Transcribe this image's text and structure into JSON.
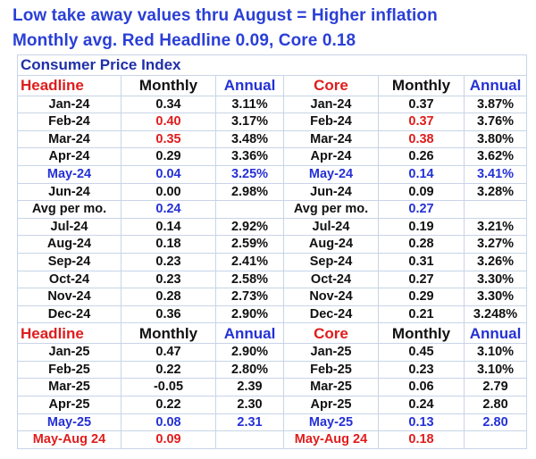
{
  "titles": {
    "line1": "Low take away values thru August = Higher inflation",
    "line2": "Monthly avg. Red Headline 0.09, Core 0.18"
  },
  "table": {
    "caption": "Consumer Price Index",
    "header_2024": {
      "headline": "Headline",
      "monthly": "Monthly",
      "annual": "Annual",
      "core": "Core",
      "core_monthly": "Monthly",
      "core_annual": "Annual"
    },
    "rows_h1_2024": [
      {
        "month": "Jan-24",
        "h_m": "0.34",
        "h_a": "3.11%",
        "core_month": "Jan-24",
        "c_m": "0.37",
        "c_a": "3.87%"
      },
      {
        "month": "Feb-24",
        "h_m": "0.40",
        "h_a": "3.17%",
        "core_month": "Feb-24",
        "c_m": "0.37",
        "c_a": "3.76%"
      },
      {
        "month": "Mar-24",
        "h_m": "0.35",
        "h_a": "3.48%",
        "core_month": "Mar-24",
        "c_m": "0.38",
        "c_a": "3.80%"
      },
      {
        "month": "Apr-24",
        "h_m": "0.29",
        "h_a": "3.36%",
        "core_month": "Apr-24",
        "c_m": "0.26",
        "c_a": "3.62%"
      },
      {
        "month": "May-24",
        "h_m": "0.04",
        "h_a": "3.25%",
        "core_month": "May-24",
        "c_m": "0.14",
        "c_a": "3.41%"
      },
      {
        "month": "Jun-24",
        "h_m": "0.00",
        "h_a": "2.98%",
        "core_month": "Jun-24",
        "c_m": "0.09",
        "c_a": "3.28%"
      }
    ],
    "avg_row": {
      "label": "Avg per mo.",
      "h_value": "0.24",
      "core_label": "Avg per mo.",
      "c_value": "0.27"
    },
    "rows_h2_2024": [
      {
        "month": "Jul-24",
        "h_m": "0.14",
        "h_a": "2.92%",
        "core_month": "Jul-24",
        "c_m": "0.19",
        "c_a": "3.21%"
      },
      {
        "month": "Aug-24",
        "h_m": "0.18",
        "h_a": "2.59%",
        "core_month": "Aug-24",
        "c_m": "0.28",
        "c_a": "3.27%"
      },
      {
        "month": "Sep-24",
        "h_m": "0.23",
        "h_a": "2.41%",
        "core_month": "Sep-24",
        "c_m": "0.31",
        "c_a": "3.26%"
      },
      {
        "month": "Oct-24",
        "h_m": "0.23",
        "h_a": "2.58%",
        "core_month": "Oct-24",
        "c_m": "0.27",
        "c_a": "3.30%"
      },
      {
        "month": "Nov-24",
        "h_m": "0.28",
        "h_a": "2.73%",
        "core_month": "Nov-24",
        "c_m": "0.29",
        "c_a": "3.30%"
      },
      {
        "month": "Dec-24",
        "h_m": "0.36",
        "h_a": "2.90%",
        "core_month": "Dec-24",
        "c_m": "0.21",
        "c_a": "3.248%"
      }
    ],
    "header_2025": {
      "headline": "Headline",
      "monthly": "Monthly",
      "annual": "Annual",
      "core": "Core",
      "core_monthly": "Monthly",
      "core_annual": "Annual"
    },
    "rows_2025": [
      {
        "month": "Jan-25",
        "h_m": "0.47",
        "h_a": "2.90%",
        "core_month": "Jan-25",
        "c_m": "0.45",
        "c_a": "3.10%"
      },
      {
        "month": "Feb-25",
        "h_m": "0.22",
        "h_a": "2.80%",
        "core_month": "Feb-25",
        "c_m": "0.23",
        "c_a": "3.10%"
      },
      {
        "month": "Mar-25",
        "h_m": "-0.05",
        "h_a": "2.39",
        "core_month": "Mar-25",
        "c_m": "0.06",
        "c_a": "2.79"
      },
      {
        "month": "Apr-25",
        "h_m": "0.22",
        "h_a": "2.30",
        "core_month": "Apr-25",
        "c_m": "0.24",
        "c_a": "2.80"
      },
      {
        "month": "May-25",
        "h_m": "0.08",
        "h_a": "2.31",
        "core_month": "May-25",
        "c_m": "0.13",
        "c_a": "2.80"
      }
    ],
    "may_aug_row": {
      "label": "May-Aug 24",
      "h_value": "0.09",
      "core_label": "May-Aug 24",
      "c_value": "0.18"
    }
  },
  "colors": {
    "title_blue": "#2a3fd6",
    "highlight_red": "#e01c1c",
    "highlight_blue": "#2431d6",
    "grid": "#c8d4e8"
  }
}
